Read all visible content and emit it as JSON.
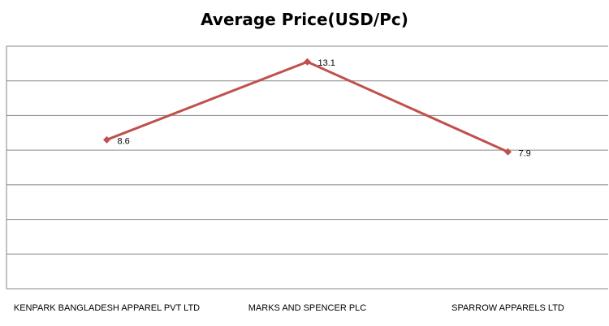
{
  "chart_data": {
    "type": "line",
    "title": "Average Price(USD/Pc)",
    "categories": [
      "KENPARK BANGLADESH APPAREL PVT LTD",
      "MARKS AND SPENCER  PLC",
      "SPARROW APPARELS LTD"
    ],
    "series": [
      {
        "values": [
          8.6,
          13.1,
          7.9
        ]
      }
    ],
    "data_labels": [
      "8.6",
      "13.1",
      "7.9"
    ],
    "ylim": [
      0,
      14
    ],
    "gridlines": 7,
    "grid": true,
    "legend": "none",
    "line_color": "#C0504D",
    "grid_color": "#868686"
  }
}
